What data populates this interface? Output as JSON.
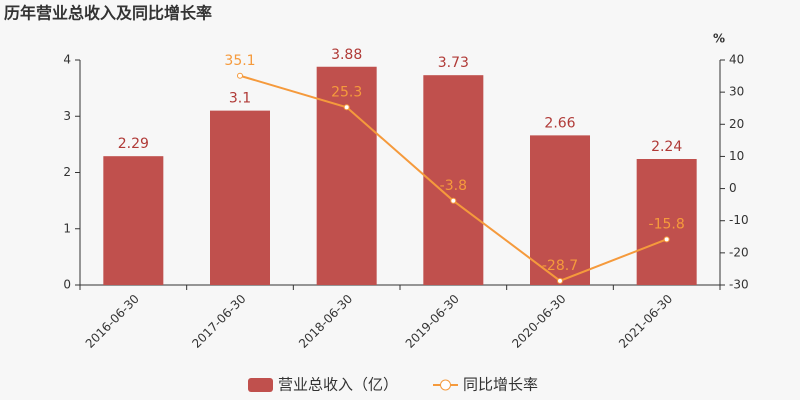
{
  "chart_data": {
    "type": "bar",
    "title": "历年营业总收入及同比增长率",
    "y2_label": "%",
    "categories": [
      "2016-06-30",
      "2017-06-30",
      "2018-06-30",
      "2019-06-30",
      "2020-06-30",
      "2021-06-30"
    ],
    "series": [
      {
        "name": "营业总收入（亿）",
        "type": "bar",
        "color": "#c0504d",
        "label_color": "#b03a37",
        "values": [
          2.29,
          3.1,
          3.88,
          3.73,
          2.66,
          2.24
        ]
      },
      {
        "name": "同比增长率",
        "type": "line",
        "axis": "y2",
        "color": "#f59a3c",
        "label_color": "#f59a3c",
        "values": [
          null,
          35.1,
          25.3,
          -3.8,
          -28.7,
          -15.8
        ]
      }
    ],
    "ylim": [
      0,
      4
    ],
    "yticks": [
      0,
      1,
      2,
      3,
      4
    ],
    "y2lim": [
      -30,
      40
    ],
    "y2ticks": [
      -30,
      -20,
      -10,
      0,
      10,
      20,
      30,
      40
    ],
    "legend": "bottom"
  }
}
